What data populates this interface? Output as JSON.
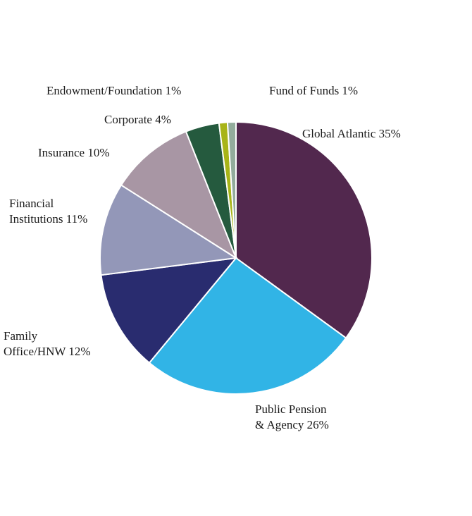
{
  "chart_data": {
    "type": "pie",
    "slices": [
      {
        "label": [
          "Global Atlantic 35%"
        ],
        "value": 35,
        "color": "#52284e"
      },
      {
        "label": [
          "Public Pension",
          "& Agency 26%"
        ],
        "value": 26,
        "color": "#31b4e6"
      },
      {
        "label": [
          "Family",
          "Office/HNW 12%"
        ],
        "value": 12,
        "color": "#292c6f"
      },
      {
        "label": [
          "Financial",
          "Institutions 11%"
        ],
        "value": 11,
        "color": "#9397b8"
      },
      {
        "label": [
          "Insurance 10%"
        ],
        "value": 10,
        "color": "#a896a4"
      },
      {
        "label": [
          "Corporate 4%"
        ],
        "value": 4,
        "color": "#255a3e"
      },
      {
        "label": [
          "Endowment/Foundation 1%"
        ],
        "value": 1,
        "color": "#a8b418"
      },
      {
        "label": [
          "Fund of Funds 1%"
        ],
        "value": 1,
        "color": "#93ac9c"
      }
    ]
  }
}
